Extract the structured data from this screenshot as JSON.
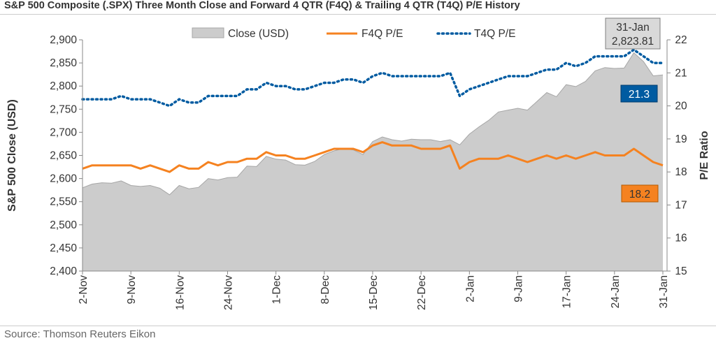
{
  "title": "S&P 500 Composite (.SPX) Three Month Close and Forward 4 QTR (F4Q) & Trailing 4 QTR (T4Q) P/E History",
  "source": "Source: Thomson Reuters Eikon",
  "colors": {
    "close_fill": "#cccccc",
    "close_stroke": "#a6a6a6",
    "f4q": "#f58220",
    "t4q": "#005ba1",
    "axis": "#888888"
  },
  "chart_data": {
    "type": "area",
    "title": "S&P 500 Composite (.SPX) Three Month Close and Forward 4 QTR (F4Q) & Trailing 4 QTR (T4Q) P/E History",
    "xlabel": "",
    "ylabel": "S&P 500 Close (USD)",
    "y2label": "P/E Ratio",
    "ylim": [
      2400,
      2900
    ],
    "y2lim": [
      15,
      22
    ],
    "y_ticks": [
      "2,400",
      "2,450",
      "2,500",
      "2,550",
      "2,600",
      "2,650",
      "2,700",
      "2,750",
      "2,800",
      "2,850",
      "2,900"
    ],
    "y2_ticks": [
      "15",
      "16",
      "17",
      "18",
      "19",
      "20",
      "21",
      "22"
    ],
    "x_tick_labels": [
      "2-Nov",
      "9-Nov",
      "16-Nov",
      "24-Nov",
      "1-Dec",
      "8-Dec",
      "15-Dec",
      "22-Dec",
      "2-Jan",
      "9-Jan",
      "17-Jan",
      "24-Jan",
      "31-Jan"
    ],
    "x_tick_indices": [
      0,
      5,
      10,
      15,
      20,
      25,
      30,
      35,
      40,
      45,
      50,
      55,
      60
    ],
    "legend_placement": "top",
    "grid": false,
    "series": [
      {
        "name": "Close (USD)",
        "axis": "left",
        "style": "area",
        "values": [
          2580,
          2588,
          2591,
          2590,
          2595,
          2585,
          2583,
          2585,
          2579,
          2565,
          2585,
          2578,
          2581,
          2600,
          2597,
          2602,
          2603,
          2627,
          2626,
          2648,
          2642,
          2640,
          2630,
          2629,
          2637,
          2652,
          2660,
          2665,
          2662,
          2652,
          2680,
          2690,
          2684,
          2681,
          2685,
          2684,
          2684,
          2680,
          2684,
          2673,
          2696,
          2712,
          2726,
          2744,
          2748,
          2752,
          2748,
          2767,
          2786,
          2777,
          2803,
          2799,
          2810,
          2833,
          2840,
          2838,
          2839,
          2872,
          2853,
          2822,
          2824
        ]
      },
      {
        "name": "F4Q P/E",
        "axis": "right",
        "style": "solid",
        "values": [
          18.1,
          18.2,
          18.2,
          18.2,
          18.2,
          18.2,
          18.1,
          18.2,
          18.1,
          18.0,
          18.2,
          18.1,
          18.1,
          18.3,
          18.2,
          18.3,
          18.3,
          18.4,
          18.4,
          18.6,
          18.5,
          18.5,
          18.4,
          18.4,
          18.5,
          18.6,
          18.7,
          18.7,
          18.7,
          18.6,
          18.8,
          18.9,
          18.8,
          18.8,
          18.8,
          18.7,
          18.7,
          18.7,
          18.8,
          18.1,
          18.3,
          18.4,
          18.4,
          18.4,
          18.5,
          18.4,
          18.3,
          18.4,
          18.5,
          18.4,
          18.5,
          18.4,
          18.5,
          18.6,
          18.5,
          18.5,
          18.5,
          18.7,
          18.5,
          18.3,
          18.2
        ]
      },
      {
        "name": "T4Q P/E",
        "axis": "right",
        "style": "dotted",
        "values": [
          20.2,
          20.2,
          20.2,
          20.2,
          20.3,
          20.2,
          20.2,
          20.2,
          20.1,
          20.0,
          20.2,
          20.1,
          20.1,
          20.3,
          20.3,
          20.3,
          20.3,
          20.5,
          20.5,
          20.7,
          20.6,
          20.6,
          20.5,
          20.5,
          20.6,
          20.7,
          20.7,
          20.8,
          20.8,
          20.7,
          20.9,
          21.0,
          20.9,
          20.9,
          20.9,
          20.9,
          20.9,
          20.9,
          21.0,
          20.3,
          20.5,
          20.6,
          20.7,
          20.8,
          20.9,
          20.9,
          20.9,
          21.0,
          21.1,
          21.1,
          21.3,
          21.2,
          21.3,
          21.5,
          21.5,
          21.5,
          21.5,
          21.7,
          21.5,
          21.3,
          21.3
        ]
      }
    ],
    "annotations": [
      {
        "type": "callout",
        "label": "31-Jan",
        "value": "2,823.81",
        "index": 60
      },
      {
        "type": "end-label",
        "series": "T4Q P/E",
        "value": "21.3"
      },
      {
        "type": "end-label",
        "series": "F4Q P/E",
        "value": "18.2"
      }
    ]
  }
}
